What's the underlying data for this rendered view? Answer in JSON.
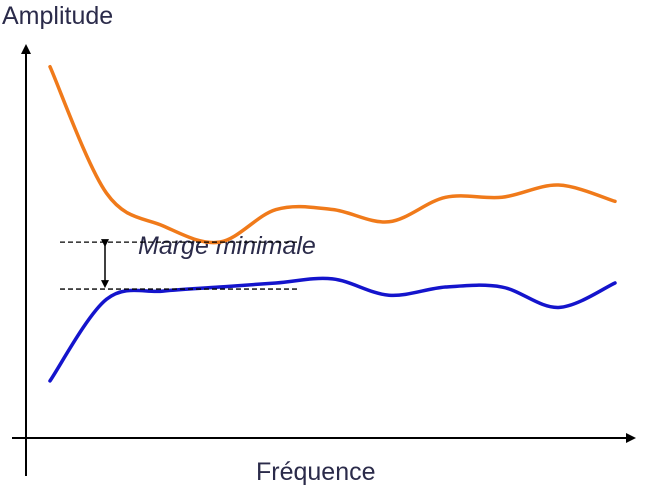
{
  "chart_data": {
    "type": "line",
    "title": "",
    "xlabel": "Fréquence",
    "ylabel": "Amplitude",
    "annotation": "Marge minimale",
    "x": [
      0,
      1,
      2,
      3,
      4,
      5,
      6,
      7,
      8,
      9,
      10
    ],
    "series": [
      {
        "color": "#F07A1A",
        "values": [
          9.1,
          6.0,
          5.2,
          4.8,
          5.6,
          5.6,
          5.3,
          5.9,
          5.9,
          6.2,
          5.8
        ]
      },
      {
        "color": "#1414CC",
        "values": [
          1.4,
          3.4,
          3.6,
          3.7,
          3.8,
          3.9,
          3.5,
          3.7,
          3.7,
          3.2,
          3.8
        ]
      }
    ],
    "margin_band": {
      "upper": 4.8,
      "lower": 3.65
    },
    "ylim": [
      0,
      10
    ],
    "grid": false,
    "axis_color": "#000000"
  }
}
